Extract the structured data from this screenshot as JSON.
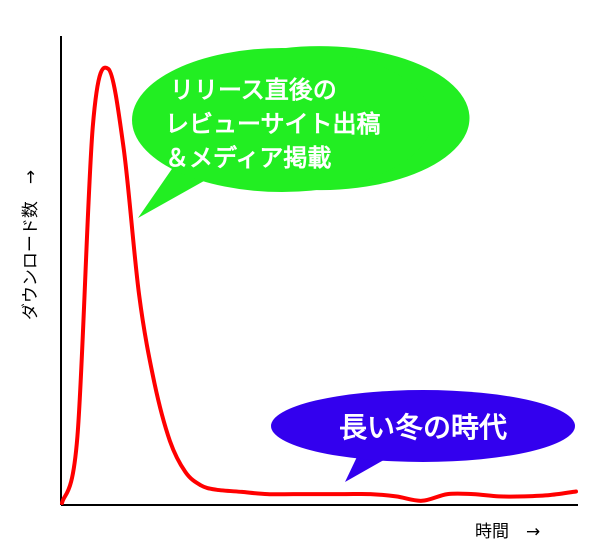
{
  "chart_data": {
    "type": "line",
    "title": "",
    "xlabel": "時間　→",
    "ylabel": "ダウンロード数　→",
    "x": [
      0,
      0.3,
      0.6,
      0.9,
      1.2,
      1.5,
      1.8,
      2.1,
      2.4,
      2.7,
      3.0,
      3.5,
      4.0,
      4.5,
      5.0,
      5.5,
      6.0,
      6.5,
      7.0,
      7.5,
      8.0,
      8.5,
      9.0,
      9.5,
      10.0
    ],
    "series": [
      {
        "color": "#ff0000",
        "values": [
          0,
          15,
          85,
          98,
          80,
          47,
          27,
          14,
          7,
          4,
          3,
          2.5,
          2,
          2,
          2,
          2,
          2,
          1.5,
          0.5,
          2,
          2,
          1.5,
          1.5,
          1.8,
          2.6
        ]
      }
    ],
    "xlim": [
      0,
      10
    ],
    "ylim": [
      0,
      100
    ],
    "grid": false,
    "annotations": [
      {
        "lines": [
          "リリース直後の",
          "レビューサイト出稿",
          "＆メディア掲載"
        ],
        "color": "#22ee22"
      },
      {
        "lines": [
          "長い冬の時代"
        ],
        "color": "#3300ee"
      }
    ]
  }
}
